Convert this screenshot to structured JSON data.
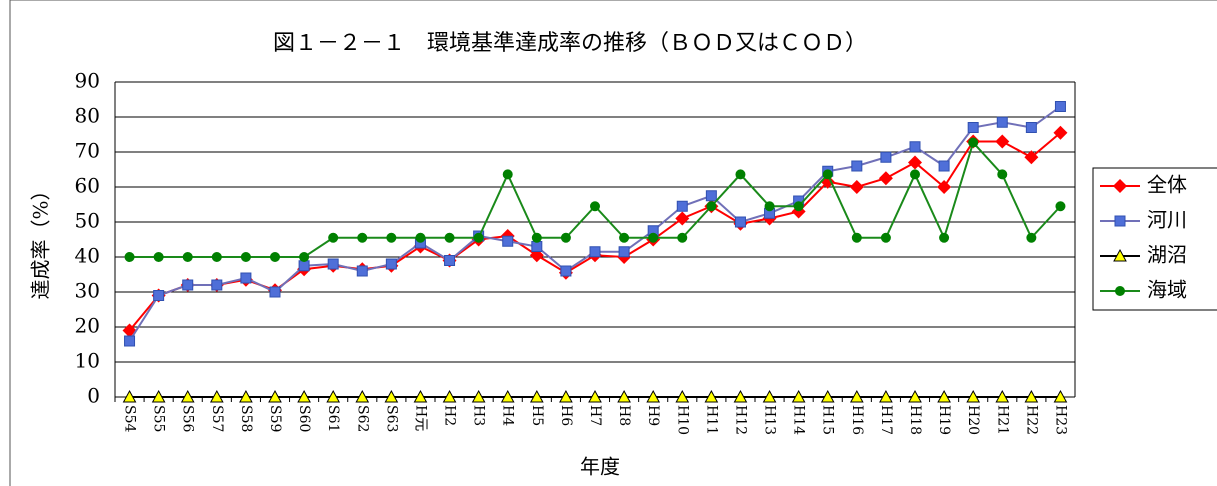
{
  "chart_data": {
    "type": "line",
    "title": "図１－２－１　環境基準達成率の推移（ＢＯＤ又はＣＯＤ）",
    "x_label": "年度",
    "y_label": "達成率（%）",
    "categories": [
      "S54",
      "S55",
      "S56",
      "S57",
      "S58",
      "S59",
      "S60",
      "S61",
      "S62",
      "S63",
      "H元",
      "H2",
      "H3",
      "H4",
      "H5",
      "H6",
      "H7",
      "H8",
      "H9",
      "H10",
      "H11",
      "H12",
      "H13",
      "H14",
      "H15",
      "H16",
      "H17",
      "H18",
      "H19",
      "H20",
      "H21",
      "H22",
      "H23"
    ],
    "ylim": [
      0,
      90
    ],
    "yticks": [
      0,
      10,
      20,
      30,
      40,
      50,
      60,
      70,
      80,
      90
    ],
    "grid": true,
    "legend": "right",
    "series": [
      {
        "name": "全体",
        "color": "#ff0000",
        "marker": "diamond",
        "values": [
          19,
          29,
          32,
          32,
          33.5,
          30.5,
          36.5,
          37.5,
          36.5,
          37.5,
          43,
          39,
          45,
          46,
          40.5,
          35.5,
          40.5,
          40,
          45,
          51,
          54.5,
          49.5,
          51,
          53,
          61.5,
          60,
          62.5,
          67,
          60,
          73,
          73,
          68.5,
          75.5
        ]
      },
      {
        "name": "河川",
        "color": "#4f6fd8",
        "marker": "square",
        "values": [
          16,
          29,
          32,
          32,
          34,
          30,
          37.5,
          38,
          36,
          38,
          44,
          39,
          46,
          44.5,
          43,
          36,
          41.5,
          41.5,
          47.5,
          54.5,
          57.5,
          50,
          52.5,
          56,
          64.5,
          66,
          68.5,
          71.5,
          66,
          77,
          78.5,
          77,
          83
        ]
      },
      {
        "name": "湖沼",
        "color": "#ffff00",
        "marker": "triangle",
        "values": [
          0,
          0,
          0,
          0,
          0,
          0,
          0,
          0,
          0,
          0,
          0,
          0,
          0,
          0,
          0,
          0,
          0,
          0,
          0,
          0,
          0,
          0,
          0,
          0,
          0,
          0,
          0,
          0,
          0,
          0,
          0,
          0,
          0
        ]
      },
      {
        "name": "海域",
        "color": "#008000",
        "marker": "circle",
        "values": [
          40,
          40,
          40,
          40,
          40,
          40,
          40,
          45.5,
          45.5,
          45.5,
          45.5,
          45.5,
          45.5,
          63.6,
          45.5,
          45.5,
          54.5,
          45.5,
          45.5,
          45.5,
          54.5,
          63.6,
          54.5,
          54.5,
          63.6,
          45.5,
          45.5,
          63.6,
          45.5,
          72.7,
          63.6,
          45.5,
          54.5
        ]
      }
    ]
  }
}
